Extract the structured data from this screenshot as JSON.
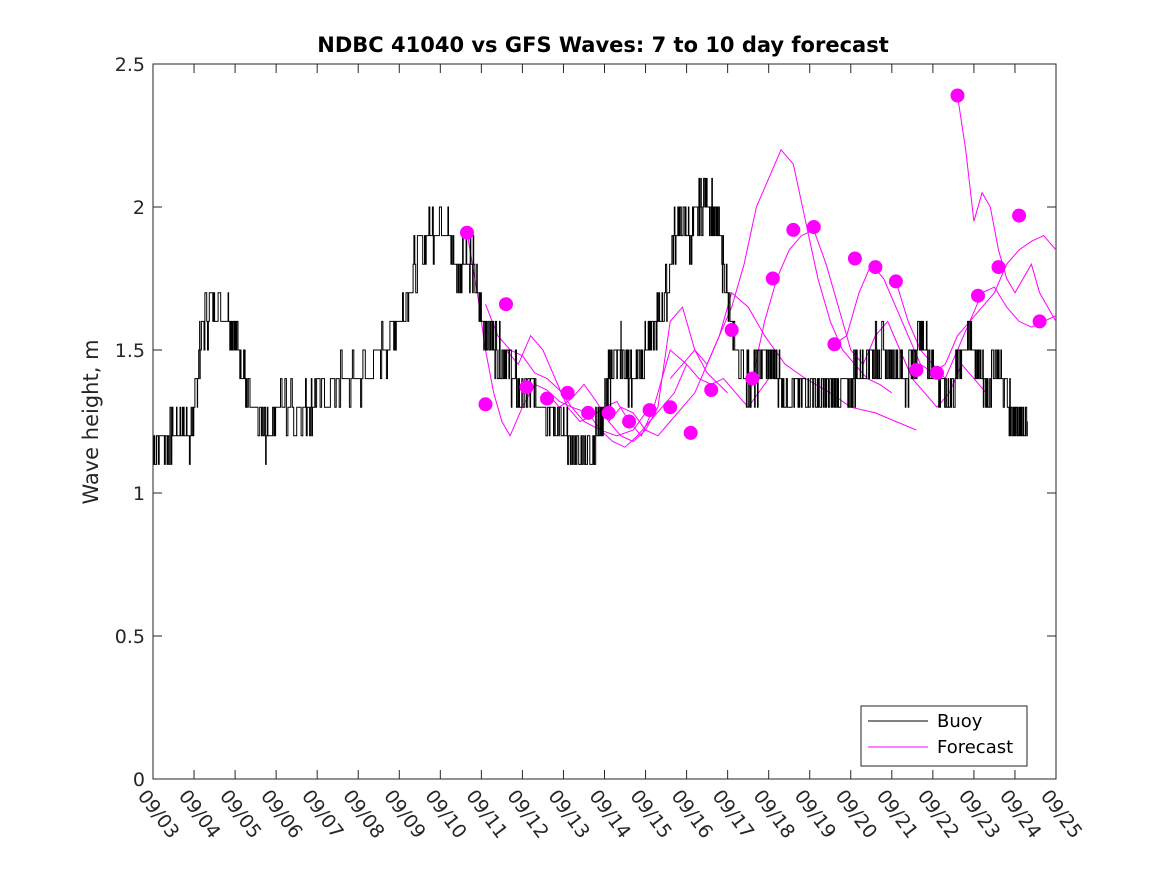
{
  "chart_data": {
    "type": "line",
    "title": "NDBC 41040 vs GFS Waves: 7 to 10 day forecast",
    "xlabel": "",
    "ylabel": "Wave height, m",
    "ylim": [
      0,
      2.5
    ],
    "xlim": [
      0,
      22
    ],
    "yticks": [
      "0",
      "0.5",
      "1",
      "1.5",
      "2",
      "2.5"
    ],
    "xticks": [
      "09/03",
      "09/04",
      "09/05",
      "09/06",
      "09/07",
      "09/08",
      "09/09",
      "09/10",
      "09/11",
      "09/12",
      "09/13",
      "09/14",
      "09/15",
      "09/16",
      "09/17",
      "09/18",
      "09/19",
      "09/20",
      "09/21",
      "09/22",
      "09/23",
      "09/24",
      "09/25"
    ],
    "legend": {
      "position": "bottom-right",
      "entries": [
        "Buoy",
        "Forecast"
      ]
    },
    "colors": {
      "buoy": "#000000",
      "forecast": "#ff00ff"
    },
    "buoy": {
      "name": "Buoy",
      "x": [
        0,
        0.3,
        0.5,
        0.7,
        0.9,
        1.0,
        1.1,
        1.2,
        1.5,
        1.8,
        2.0,
        2.2,
        2.3,
        2.6,
        2.8,
        3.0,
        3.5,
        3.8,
        4.0,
        4.5,
        5.0,
        5.4,
        5.8,
        6.1,
        6.4,
        6.7,
        7.0,
        7.2,
        7.4,
        7.6,
        7.8,
        8.0,
        8.2,
        8.4,
        8.6,
        8.8,
        9.0,
        9.2,
        9.4,
        9.6,
        9.8,
        10.0,
        10.2,
        10.4,
        10.6,
        10.8,
        11.0,
        11.1,
        11.2,
        11.4,
        11.5,
        11.6,
        11.8,
        12.0,
        12.3,
        12.5,
        12.7,
        12.9,
        13.1,
        13.3,
        13.5,
        13.7,
        13.9,
        14.1,
        14.3,
        14.5,
        14.7,
        14.9,
        15.1,
        15.3,
        15.5,
        15.7,
        15.9,
        16.1,
        16.3,
        16.5,
        16.7,
        16.9,
        17.1,
        17.3,
        17.5,
        17.7,
        17.9,
        18.1,
        18.3,
        18.5,
        18.7,
        18.9,
        19.1,
        19.3,
        19.5,
        19.7,
        19.9,
        20.1,
        20.3,
        20.5,
        20.7,
        20.9,
        21.1,
        21.3
      ],
      "y": [
        1.15,
        1.2,
        1.2,
        1.25,
        1.2,
        1.3,
        1.45,
        1.6,
        1.65,
        1.65,
        1.55,
        1.45,
        1.3,
        1.25,
        1.2,
        1.3,
        1.3,
        1.3,
        1.35,
        1.38,
        1.4,
        1.45,
        1.55,
        1.65,
        1.8,
        1.9,
        1.95,
        1.9,
        1.75,
        1.85,
        1.8,
        1.6,
        1.55,
        1.5,
        1.45,
        1.4,
        1.35,
        1.35,
        1.35,
        1.3,
        1.25,
        1.2,
        1.15,
        1.12,
        1.15,
        1.2,
        1.3,
        1.4,
        1.45,
        1.5,
        1.45,
        1.4,
        1.45,
        1.5,
        1.6,
        1.7,
        1.9,
        1.95,
        1.9,
        2.0,
        2.05,
        1.95,
        1.8,
        1.55,
        1.45,
        1.4,
        1.4,
        1.5,
        1.45,
        1.4,
        1.35,
        1.35,
        1.4,
        1.35,
        1.35,
        1.35,
        1.35,
        1.35,
        1.4,
        1.45,
        1.5,
        1.5,
        1.45,
        1.45,
        1.4,
        1.45,
        1.55,
        1.5,
        1.4,
        1.35,
        1.35,
        1.5,
        1.55,
        1.45,
        1.35,
        1.45,
        1.4,
        1.3,
        1.25,
        1.25
      ]
    },
    "forecast_points": {
      "name": "Forecast",
      "x": [
        7.65,
        8.1,
        8.6,
        9.1,
        9.6,
        10.1,
        10.6,
        11.1,
        11.6,
        12.1,
        12.6,
        13.1,
        13.6,
        14.1,
        14.6,
        15.1,
        15.6,
        16.1,
        16.6,
        17.1,
        17.6,
        18.1,
        18.6,
        19.1,
        19.6,
        20.1,
        20.6,
        21.1,
        21.6
      ],
      "y": [
        1.91,
        1.31,
        1.66,
        1.37,
        1.33,
        1.35,
        1.28,
        1.28,
        1.25,
        1.29,
        1.3,
        1.21,
        1.36,
        1.57,
        1.4,
        1.75,
        1.92,
        1.93,
        1.52,
        1.82,
        1.79,
        1.74,
        1.43,
        1.42,
        2.39,
        1.69,
        1.79,
        1.97,
        1.6
      ]
    },
    "forecast_traces": [
      {
        "x": [
          7.65,
          7.9,
          8.1,
          8.3,
          8.5,
          8.7,
          9.0,
          9.3,
          9.6,
          9.9,
          10.2,
          10.6
        ],
        "y": [
          1.91,
          1.7,
          1.5,
          1.35,
          1.25,
          1.2,
          1.3,
          1.38,
          1.36,
          1.32,
          1.3,
          1.28
        ]
      },
      {
        "x": [
          8.1,
          8.4,
          8.7,
          9.0,
          9.3,
          9.6,
          9.9,
          10.2,
          10.5,
          10.9,
          11.3,
          11.7,
          12.1
        ],
        "y": [
          1.66,
          1.55,
          1.5,
          1.48,
          1.42,
          1.4,
          1.36,
          1.3,
          1.25,
          1.22,
          1.2,
          1.22,
          1.3
        ]
      },
      {
        "x": [
          8.6,
          8.9,
          9.2,
          9.5,
          9.8,
          10.1,
          10.4,
          10.7,
          11.0,
          11.3,
          11.6,
          11.9,
          12.2,
          12.6,
          13.0
        ],
        "y": [
          1.5,
          1.45,
          1.55,
          1.5,
          1.4,
          1.3,
          1.25,
          1.27,
          1.3,
          1.32,
          1.25,
          1.2,
          1.3,
          1.5,
          1.45
        ]
      },
      {
        "x": [
          9.6,
          9.9,
          10.2,
          10.5,
          10.8,
          11.1,
          11.4,
          11.7,
          12.0,
          12.3,
          12.6,
          12.9,
          13.2,
          13.5,
          14.0
        ],
        "y": [
          1.35,
          1.3,
          1.33,
          1.38,
          1.32,
          1.25,
          1.2,
          1.18,
          1.22,
          1.3,
          1.6,
          1.65,
          1.5,
          1.42,
          1.35
        ]
      },
      {
        "x": [
          10.6,
          10.9,
          11.2,
          11.5,
          11.8,
          12.1,
          12.4,
          12.7,
          13.0,
          13.3,
          13.6,
          13.9,
          14.2,
          14.5,
          15.0
        ],
        "y": [
          1.28,
          1.22,
          1.18,
          1.16,
          1.2,
          1.25,
          1.3,
          1.35,
          1.45,
          1.4,
          1.38,
          1.4,
          1.35,
          1.3,
          1.4
        ]
      },
      {
        "x": [
          11.1,
          11.4,
          11.7,
          12.0,
          12.3,
          12.6,
          12.9,
          13.2,
          13.5,
          13.8,
          14.1,
          14.5,
          14.9,
          15.4,
          15.9,
          16.5,
          17.0,
          17.6,
          18.1,
          18.6
        ],
        "y": [
          1.25,
          1.3,
          1.28,
          1.22,
          1.2,
          1.25,
          1.3,
          1.35,
          1.45,
          1.55,
          1.7,
          1.65,
          1.55,
          1.45,
          1.4,
          1.35,
          1.3,
          1.28,
          1.25,
          1.22
        ]
      },
      {
        "x": [
          12.6,
          12.9,
          13.2,
          13.5,
          13.8,
          14.1,
          14.4,
          14.7,
          15.0,
          15.3,
          15.6,
          15.9,
          16.2,
          16.5,
          16.8,
          17.1,
          17.4,
          17.7,
          18.0
        ],
        "y": [
          1.4,
          1.45,
          1.5,
          1.45,
          1.55,
          1.65,
          1.8,
          2.0,
          2.1,
          2.2,
          2.15,
          1.95,
          1.75,
          1.6,
          1.5,
          1.45,
          1.4,
          1.38,
          1.35
        ]
      },
      {
        "x": [
          14.6,
          14.9,
          15.2,
          15.5,
          15.8,
          16.1,
          16.4,
          16.7,
          17.0,
          17.3,
          17.6,
          17.9,
          18.2,
          18.5,
          18.8,
          19.1,
          19.4,
          19.7,
          20.0,
          20.3
        ],
        "y": [
          1.4,
          1.6,
          1.75,
          1.85,
          1.9,
          1.92,
          1.8,
          1.65,
          1.5,
          1.45,
          1.55,
          1.6,
          1.5,
          1.4,
          1.35,
          1.3,
          1.35,
          1.45,
          1.4,
          1.35
        ]
      },
      {
        "x": [
          16.6,
          16.9,
          17.2,
          17.5,
          17.8,
          18.1,
          18.4,
          18.7,
          19.0,
          19.3,
          19.6,
          19.9,
          20.2,
          20.5,
          20.8,
          21.1,
          21.4,
          21.7,
          22.0
        ],
        "y": [
          1.52,
          1.55,
          1.7,
          1.8,
          1.75,
          1.65,
          1.55,
          1.45,
          1.42,
          1.45,
          1.55,
          1.6,
          1.65,
          1.7,
          1.8,
          1.85,
          1.88,
          1.9,
          1.85
        ]
      },
      {
        "x": [
          19.6,
          19.8,
          20.0,
          20.2,
          20.4,
          20.6,
          20.8,
          21.0,
          21.2,
          21.4,
          21.6,
          21.8,
          22.0
        ],
        "y": [
          2.39,
          2.2,
          1.95,
          2.05,
          2.0,
          1.85,
          1.75,
          1.7,
          1.75,
          1.8,
          1.7,
          1.65,
          1.6
        ]
      },
      {
        "x": [
          18.1,
          18.4,
          18.7,
          19.0,
          19.3,
          19.6,
          19.9,
          20.2,
          20.5,
          20.8,
          21.1,
          21.4,
          21.7,
          22.0
        ],
        "y": [
          1.74,
          1.6,
          1.5,
          1.45,
          1.4,
          1.5,
          1.6,
          1.7,
          1.72,
          1.65,
          1.6,
          1.58,
          1.6,
          1.62
        ]
      }
    ]
  }
}
